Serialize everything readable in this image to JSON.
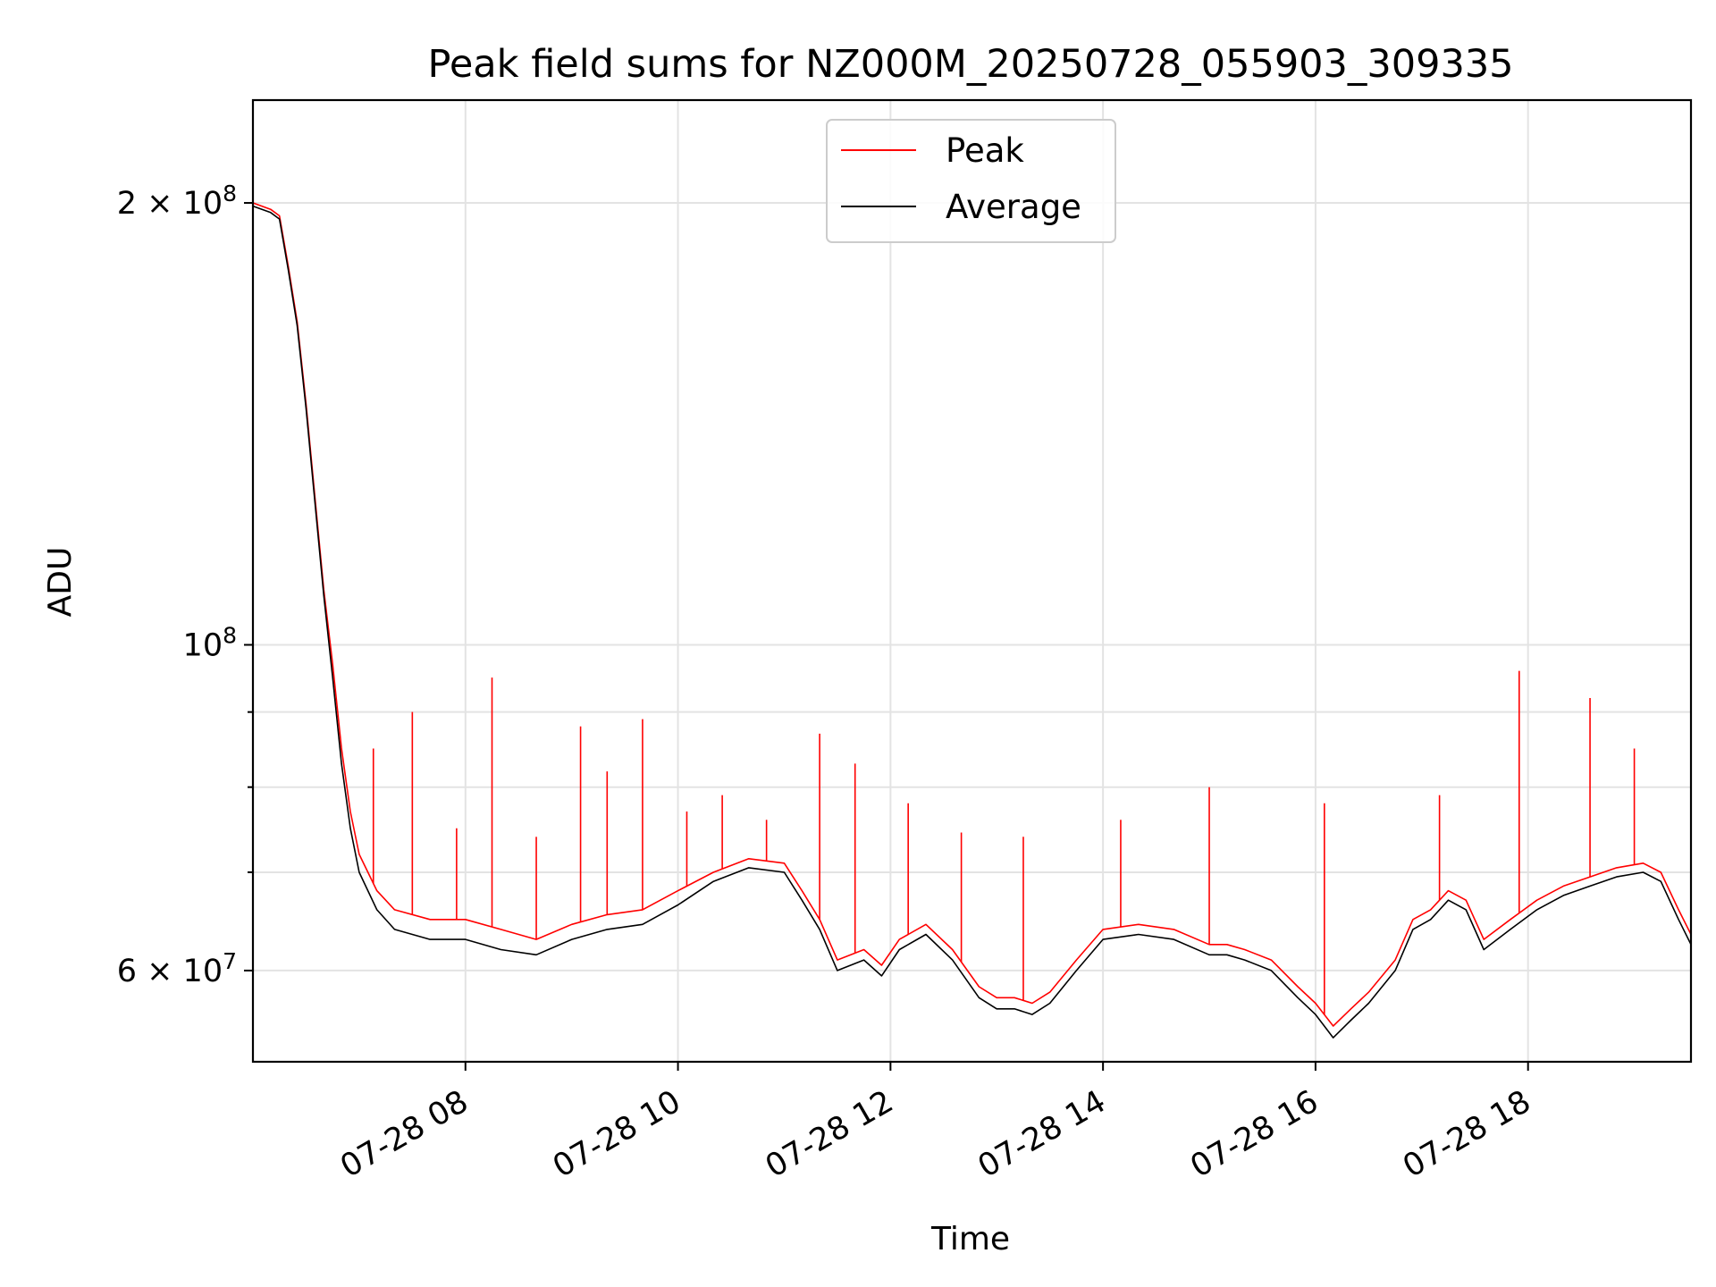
{
  "chart_data": {
    "type": "line",
    "title": "Peak field sums for NZ000M_20250728_055903_309335",
    "xlabel": "Time",
    "ylabel": "ADU",
    "yscale": "log",
    "grid": true,
    "legend_position": "upper center",
    "xlim": [
      "2025-07-28 06:00",
      "2025-07-28 19:32"
    ],
    "ylim": [
      52000000,
      235000000
    ],
    "x_ticks": [
      {
        "value": "2025-07-28 08:00",
        "label": "07-28 08"
      },
      {
        "value": "2025-07-28 10:00",
        "label": "07-28 10"
      },
      {
        "value": "2025-07-28 12:00",
        "label": "07-28 12"
      },
      {
        "value": "2025-07-28 14:00",
        "label": "07-28 14"
      },
      {
        "value": "2025-07-28 16:00",
        "label": "07-28 16"
      },
      {
        "value": "2025-07-28 18:00",
        "label": "07-28 18"
      }
    ],
    "y_ticks_major": [
      {
        "value": 200000000,
        "base": "2 × 10",
        "exp": "8"
      },
      {
        "value": 100000000,
        "base": "10",
        "exp": "8"
      },
      {
        "value": 60000000,
        "base": "6 × 10",
        "exp": "7"
      }
    ],
    "y_ticks_minor": [
      70000000,
      80000000,
      90000000
    ],
    "series": [
      {
        "name": "Average",
        "color": "#000000",
        "points": [
          [
            "2025-07-28 06:00",
            199000000
          ],
          [
            "2025-07-28 06:10",
            197000000
          ],
          [
            "2025-07-28 06:15",
            195000000
          ],
          [
            "2025-07-28 06:20",
            180000000
          ],
          [
            "2025-07-28 06:25",
            165000000
          ],
          [
            "2025-07-28 06:30",
            145000000
          ],
          [
            "2025-07-28 06:35",
            125000000
          ],
          [
            "2025-07-28 06:40",
            108000000
          ],
          [
            "2025-07-28 06:45",
            95000000
          ],
          [
            "2025-07-28 06:50",
            83000000
          ],
          [
            "2025-07-28 06:55",
            75000000
          ],
          [
            "2025-07-28 07:00",
            70000000
          ],
          [
            "2025-07-28 07:10",
            66000000
          ],
          [
            "2025-07-28 07:20",
            64000000
          ],
          [
            "2025-07-28 07:40",
            63000000
          ],
          [
            "2025-07-28 08:00",
            63000000
          ],
          [
            "2025-07-28 08:20",
            62000000
          ],
          [
            "2025-07-28 08:40",
            61500000
          ],
          [
            "2025-07-28 09:00",
            63000000
          ],
          [
            "2025-07-28 09:20",
            64000000
          ],
          [
            "2025-07-28 09:40",
            64500000
          ],
          [
            "2025-07-28 10:00",
            66500000
          ],
          [
            "2025-07-28 10:20",
            69000000
          ],
          [
            "2025-07-28 10:40",
            70500000
          ],
          [
            "2025-07-28 11:00",
            70000000
          ],
          [
            "2025-07-28 11:10",
            67000000
          ],
          [
            "2025-07-28 11:20",
            64000000
          ],
          [
            "2025-07-28 11:30",
            60000000
          ],
          [
            "2025-07-28 11:45",
            61000000
          ],
          [
            "2025-07-28 11:55",
            59500000
          ],
          [
            "2025-07-28 12:05",
            62000000
          ],
          [
            "2025-07-28 12:20",
            63500000
          ],
          [
            "2025-07-28 12:35",
            61000000
          ],
          [
            "2025-07-28 12:50",
            57500000
          ],
          [
            "2025-07-28 13:00",
            56500000
          ],
          [
            "2025-07-28 13:10",
            56500000
          ],
          [
            "2025-07-28 13:20",
            56000000
          ],
          [
            "2025-07-28 13:30",
            57000000
          ],
          [
            "2025-07-28 13:45",
            60000000
          ],
          [
            "2025-07-28 14:00",
            63000000
          ],
          [
            "2025-07-28 14:20",
            63500000
          ],
          [
            "2025-07-28 14:40",
            63000000
          ],
          [
            "2025-07-28 15:00",
            61500000
          ],
          [
            "2025-07-28 15:10",
            61500000
          ],
          [
            "2025-07-28 15:20",
            61000000
          ],
          [
            "2025-07-28 15:35",
            60000000
          ],
          [
            "2025-07-28 15:50",
            57500000
          ],
          [
            "2025-07-28 16:00",
            56000000
          ],
          [
            "2025-07-28 16:10",
            54000000
          ],
          [
            "2025-07-28 16:20",
            55500000
          ],
          [
            "2025-07-28 16:30",
            57000000
          ],
          [
            "2025-07-28 16:45",
            60000000
          ],
          [
            "2025-07-28 16:55",
            64000000
          ],
          [
            "2025-07-28 17:05",
            65000000
          ],
          [
            "2025-07-28 17:15",
            67000000
          ],
          [
            "2025-07-28 17:25",
            66000000
          ],
          [
            "2025-07-28 17:35",
            62000000
          ],
          [
            "2025-07-28 17:50",
            64000000
          ],
          [
            "2025-07-28 18:05",
            66000000
          ],
          [
            "2025-07-28 18:20",
            67500000
          ],
          [
            "2025-07-28 18:35",
            68500000
          ],
          [
            "2025-07-28 18:50",
            69500000
          ],
          [
            "2025-07-28 19:05",
            70000000
          ],
          [
            "2025-07-28 19:15",
            69000000
          ],
          [
            "2025-07-28 19:25",
            65000000
          ],
          [
            "2025-07-28 19:32",
            62500000
          ]
        ]
      },
      {
        "name": "Peak",
        "color": "#ff0000",
        "points": [
          [
            "2025-07-28 06:00",
            200000000
          ],
          [
            "2025-07-28 06:10",
            198000000
          ],
          [
            "2025-07-28 06:15",
            196000000
          ],
          [
            "2025-07-28 06:20",
            181000000
          ],
          [
            "2025-07-28 06:25",
            166000000
          ],
          [
            "2025-07-28 06:30",
            146000000
          ],
          [
            "2025-07-28 06:35",
            126000000
          ],
          [
            "2025-07-28 06:40",
            109000000
          ],
          [
            "2025-07-28 06:45",
            97000000
          ],
          [
            "2025-07-28 06:50",
            85000000
          ],
          [
            "2025-07-28 06:55",
            77000000
          ],
          [
            "2025-07-28 07:00",
            72000000
          ],
          [
            "2025-07-28 07:10",
            68000000
          ],
          [
            "2025-07-28 07:20",
            66000000
          ],
          [
            "2025-07-28 07:40",
            65000000
          ],
          [
            "2025-07-28 08:00",
            65000000
          ],
          [
            "2025-07-28 08:20",
            64000000
          ],
          [
            "2025-07-28 08:40",
            63000000
          ],
          [
            "2025-07-28 09:00",
            64500000
          ],
          [
            "2025-07-28 09:20",
            65500000
          ],
          [
            "2025-07-28 09:40",
            66000000
          ],
          [
            "2025-07-28 10:00",
            68000000
          ],
          [
            "2025-07-28 10:20",
            70000000
          ],
          [
            "2025-07-28 10:40",
            71500000
          ],
          [
            "2025-07-28 11:00",
            71000000
          ],
          [
            "2025-07-28 11:10",
            68000000
          ],
          [
            "2025-07-28 11:20",
            65000000
          ],
          [
            "2025-07-28 11:30",
            61000000
          ],
          [
            "2025-07-28 11:45",
            62000000
          ],
          [
            "2025-07-28 11:55",
            60500000
          ],
          [
            "2025-07-28 12:05",
            63000000
          ],
          [
            "2025-07-28 12:20",
            64500000
          ],
          [
            "2025-07-28 12:35",
            62000000
          ],
          [
            "2025-07-28 12:50",
            58500000
          ],
          [
            "2025-07-28 13:00",
            57500000
          ],
          [
            "2025-07-28 13:10",
            57500000
          ],
          [
            "2025-07-28 13:20",
            57000000
          ],
          [
            "2025-07-28 13:30",
            58000000
          ],
          [
            "2025-07-28 13:45",
            61000000
          ],
          [
            "2025-07-28 14:00",
            64000000
          ],
          [
            "2025-07-28 14:20",
            64500000
          ],
          [
            "2025-07-28 14:40",
            64000000
          ],
          [
            "2025-07-28 15:00",
            62500000
          ],
          [
            "2025-07-28 15:10",
            62500000
          ],
          [
            "2025-07-28 15:20",
            62000000
          ],
          [
            "2025-07-28 15:35",
            61000000
          ],
          [
            "2025-07-28 15:50",
            58500000
          ],
          [
            "2025-07-28 16:00",
            57000000
          ],
          [
            "2025-07-28 16:10",
            55000000
          ],
          [
            "2025-07-28 16:20",
            56500000
          ],
          [
            "2025-07-28 16:30",
            58000000
          ],
          [
            "2025-07-28 16:45",
            61000000
          ],
          [
            "2025-07-28 16:55",
            65000000
          ],
          [
            "2025-07-28 17:05",
            66000000
          ],
          [
            "2025-07-28 17:15",
            68000000
          ],
          [
            "2025-07-28 17:25",
            67000000
          ],
          [
            "2025-07-28 17:35",
            63000000
          ],
          [
            "2025-07-28 17:50",
            65000000
          ],
          [
            "2025-07-28 18:05",
            67000000
          ],
          [
            "2025-07-28 18:20",
            68500000
          ],
          [
            "2025-07-28 18:35",
            69500000
          ],
          [
            "2025-07-28 18:50",
            70500000
          ],
          [
            "2025-07-28 19:05",
            71000000
          ],
          [
            "2025-07-28 19:15",
            70000000
          ],
          [
            "2025-07-28 19:25",
            66000000
          ],
          [
            "2025-07-28 19:32",
            63500000
          ]
        ]
      }
    ],
    "peak_spikes": [
      [
        "2025-07-28 07:08",
        85000000
      ],
      [
        "2025-07-28 07:30",
        90000000
      ],
      [
        "2025-07-28 07:55",
        75000000
      ],
      [
        "2025-07-28 08:15",
        95000000
      ],
      [
        "2025-07-28 08:40",
        74000000
      ],
      [
        "2025-07-28 09:05",
        88000000
      ],
      [
        "2025-07-28 09:20",
        82000000
      ],
      [
        "2025-07-28 09:40",
        89000000
      ],
      [
        "2025-07-28 10:05",
        77000000
      ],
      [
        "2025-07-28 10:25",
        79000000
      ],
      [
        "2025-07-28 10:50",
        76000000
      ],
      [
        "2025-07-28 11:20",
        87000000
      ],
      [
        "2025-07-28 11:40",
        83000000
      ],
      [
        "2025-07-28 12:10",
        78000000
      ],
      [
        "2025-07-28 12:40",
        74500000
      ],
      [
        "2025-07-28 13:15",
        74000000
      ],
      [
        "2025-07-28 14:10",
        76000000
      ],
      [
        "2025-07-28 15:00",
        80000000
      ],
      [
        "2025-07-28 16:05",
        78000000
      ],
      [
        "2025-07-28 17:10",
        79000000
      ],
      [
        "2025-07-28 17:55",
        96000000
      ],
      [
        "2025-07-28 18:35",
        92000000
      ],
      [
        "2025-07-28 19:00",
        85000000
      ]
    ]
  },
  "legend": [
    {
      "label": "Peak",
      "color": "#ff0000"
    },
    {
      "label": "Average",
      "color": "#000000"
    }
  ]
}
